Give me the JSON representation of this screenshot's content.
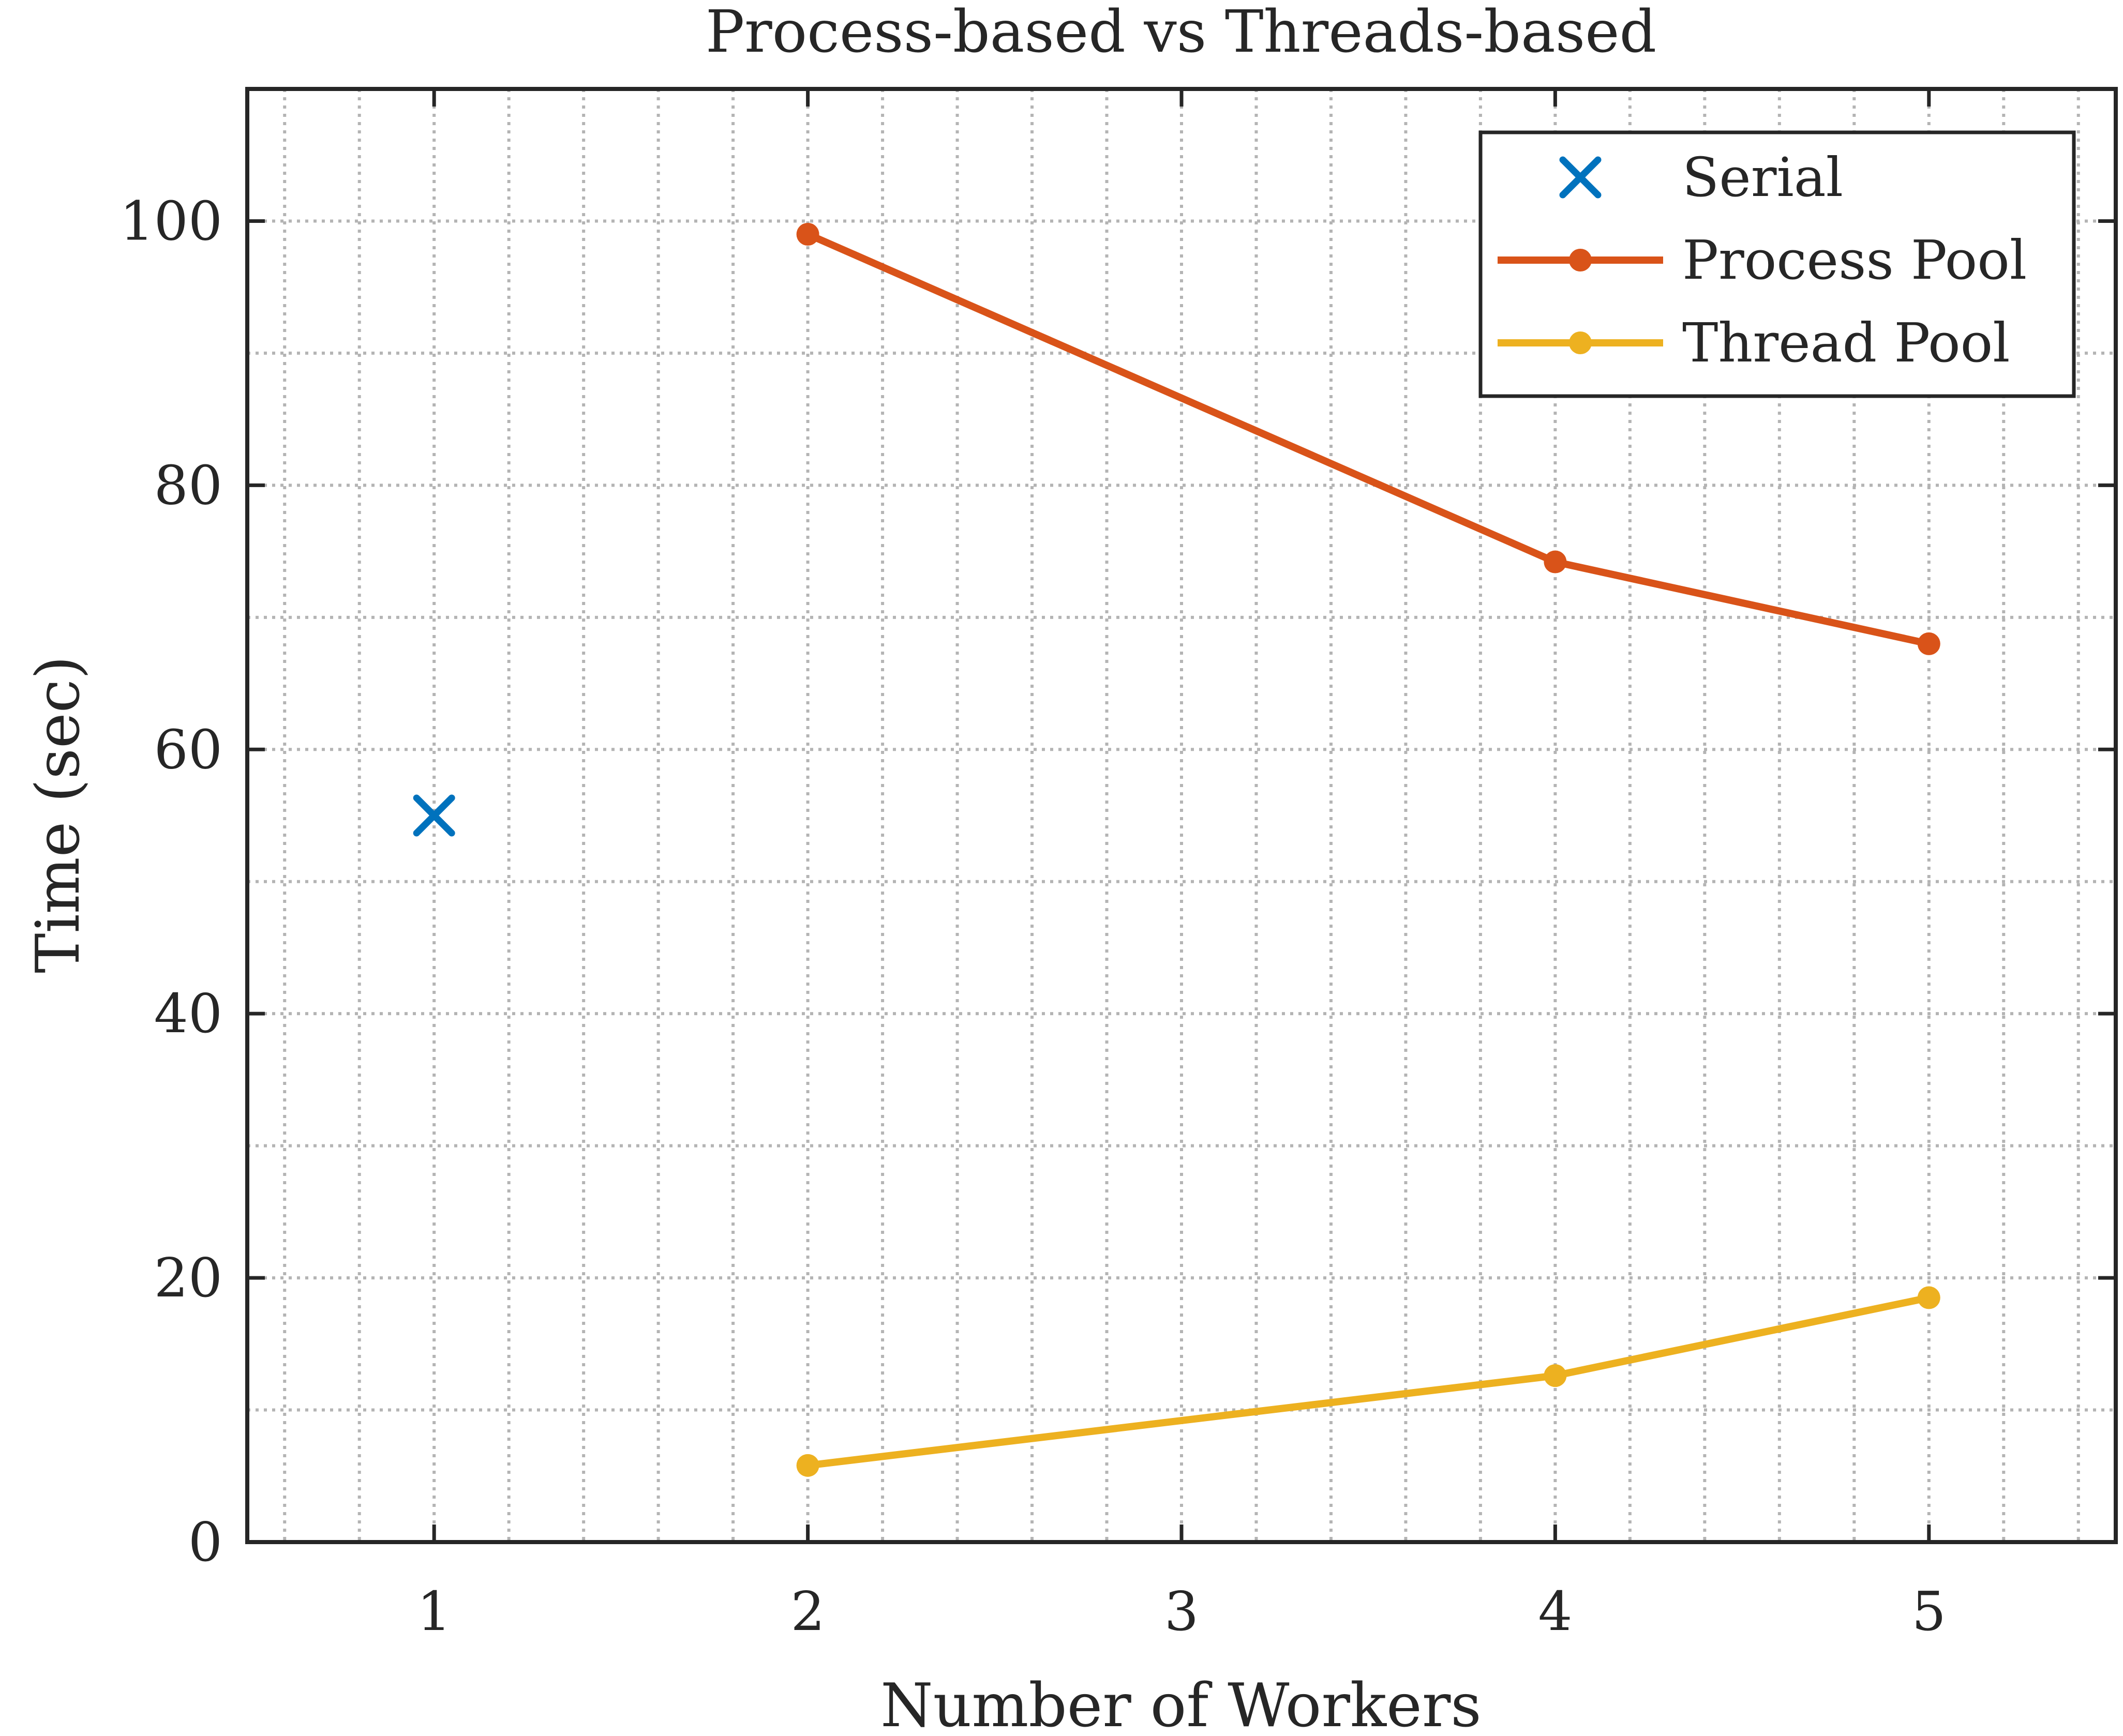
{
  "chart_data": {
    "type": "line",
    "title": "Process-based vs Threads-based",
    "xlabel": "Number of Workers",
    "ylabel": "Time (sec)",
    "xlim": [
      0.5,
      5.5
    ],
    "ylim": [
      0,
      110
    ],
    "x_ticks": [
      "1",
      "2",
      "3",
      "4",
      "5"
    ],
    "y_ticks": [
      "0",
      "20",
      "40",
      "60",
      "80",
      "100"
    ],
    "grid": true,
    "minor_grid": true,
    "legend_position": "top-right",
    "series": [
      {
        "name": "Serial",
        "marker": "x",
        "line": false,
        "color": "#0072BD",
        "x": [
          1
        ],
        "y": [
          55
        ]
      },
      {
        "name": "Process Pool",
        "marker": "circle",
        "line": true,
        "color": "#D95319",
        "x": [
          2,
          4,
          5
        ],
        "y": [
          99,
          74.2,
          68
        ]
      },
      {
        "name": "Thread Pool",
        "marker": "circle",
        "line": true,
        "color": "#EDB120",
        "x": [
          2,
          4,
          5
        ],
        "y": [
          5.8,
          12.6,
          18.5
        ]
      }
    ]
  }
}
